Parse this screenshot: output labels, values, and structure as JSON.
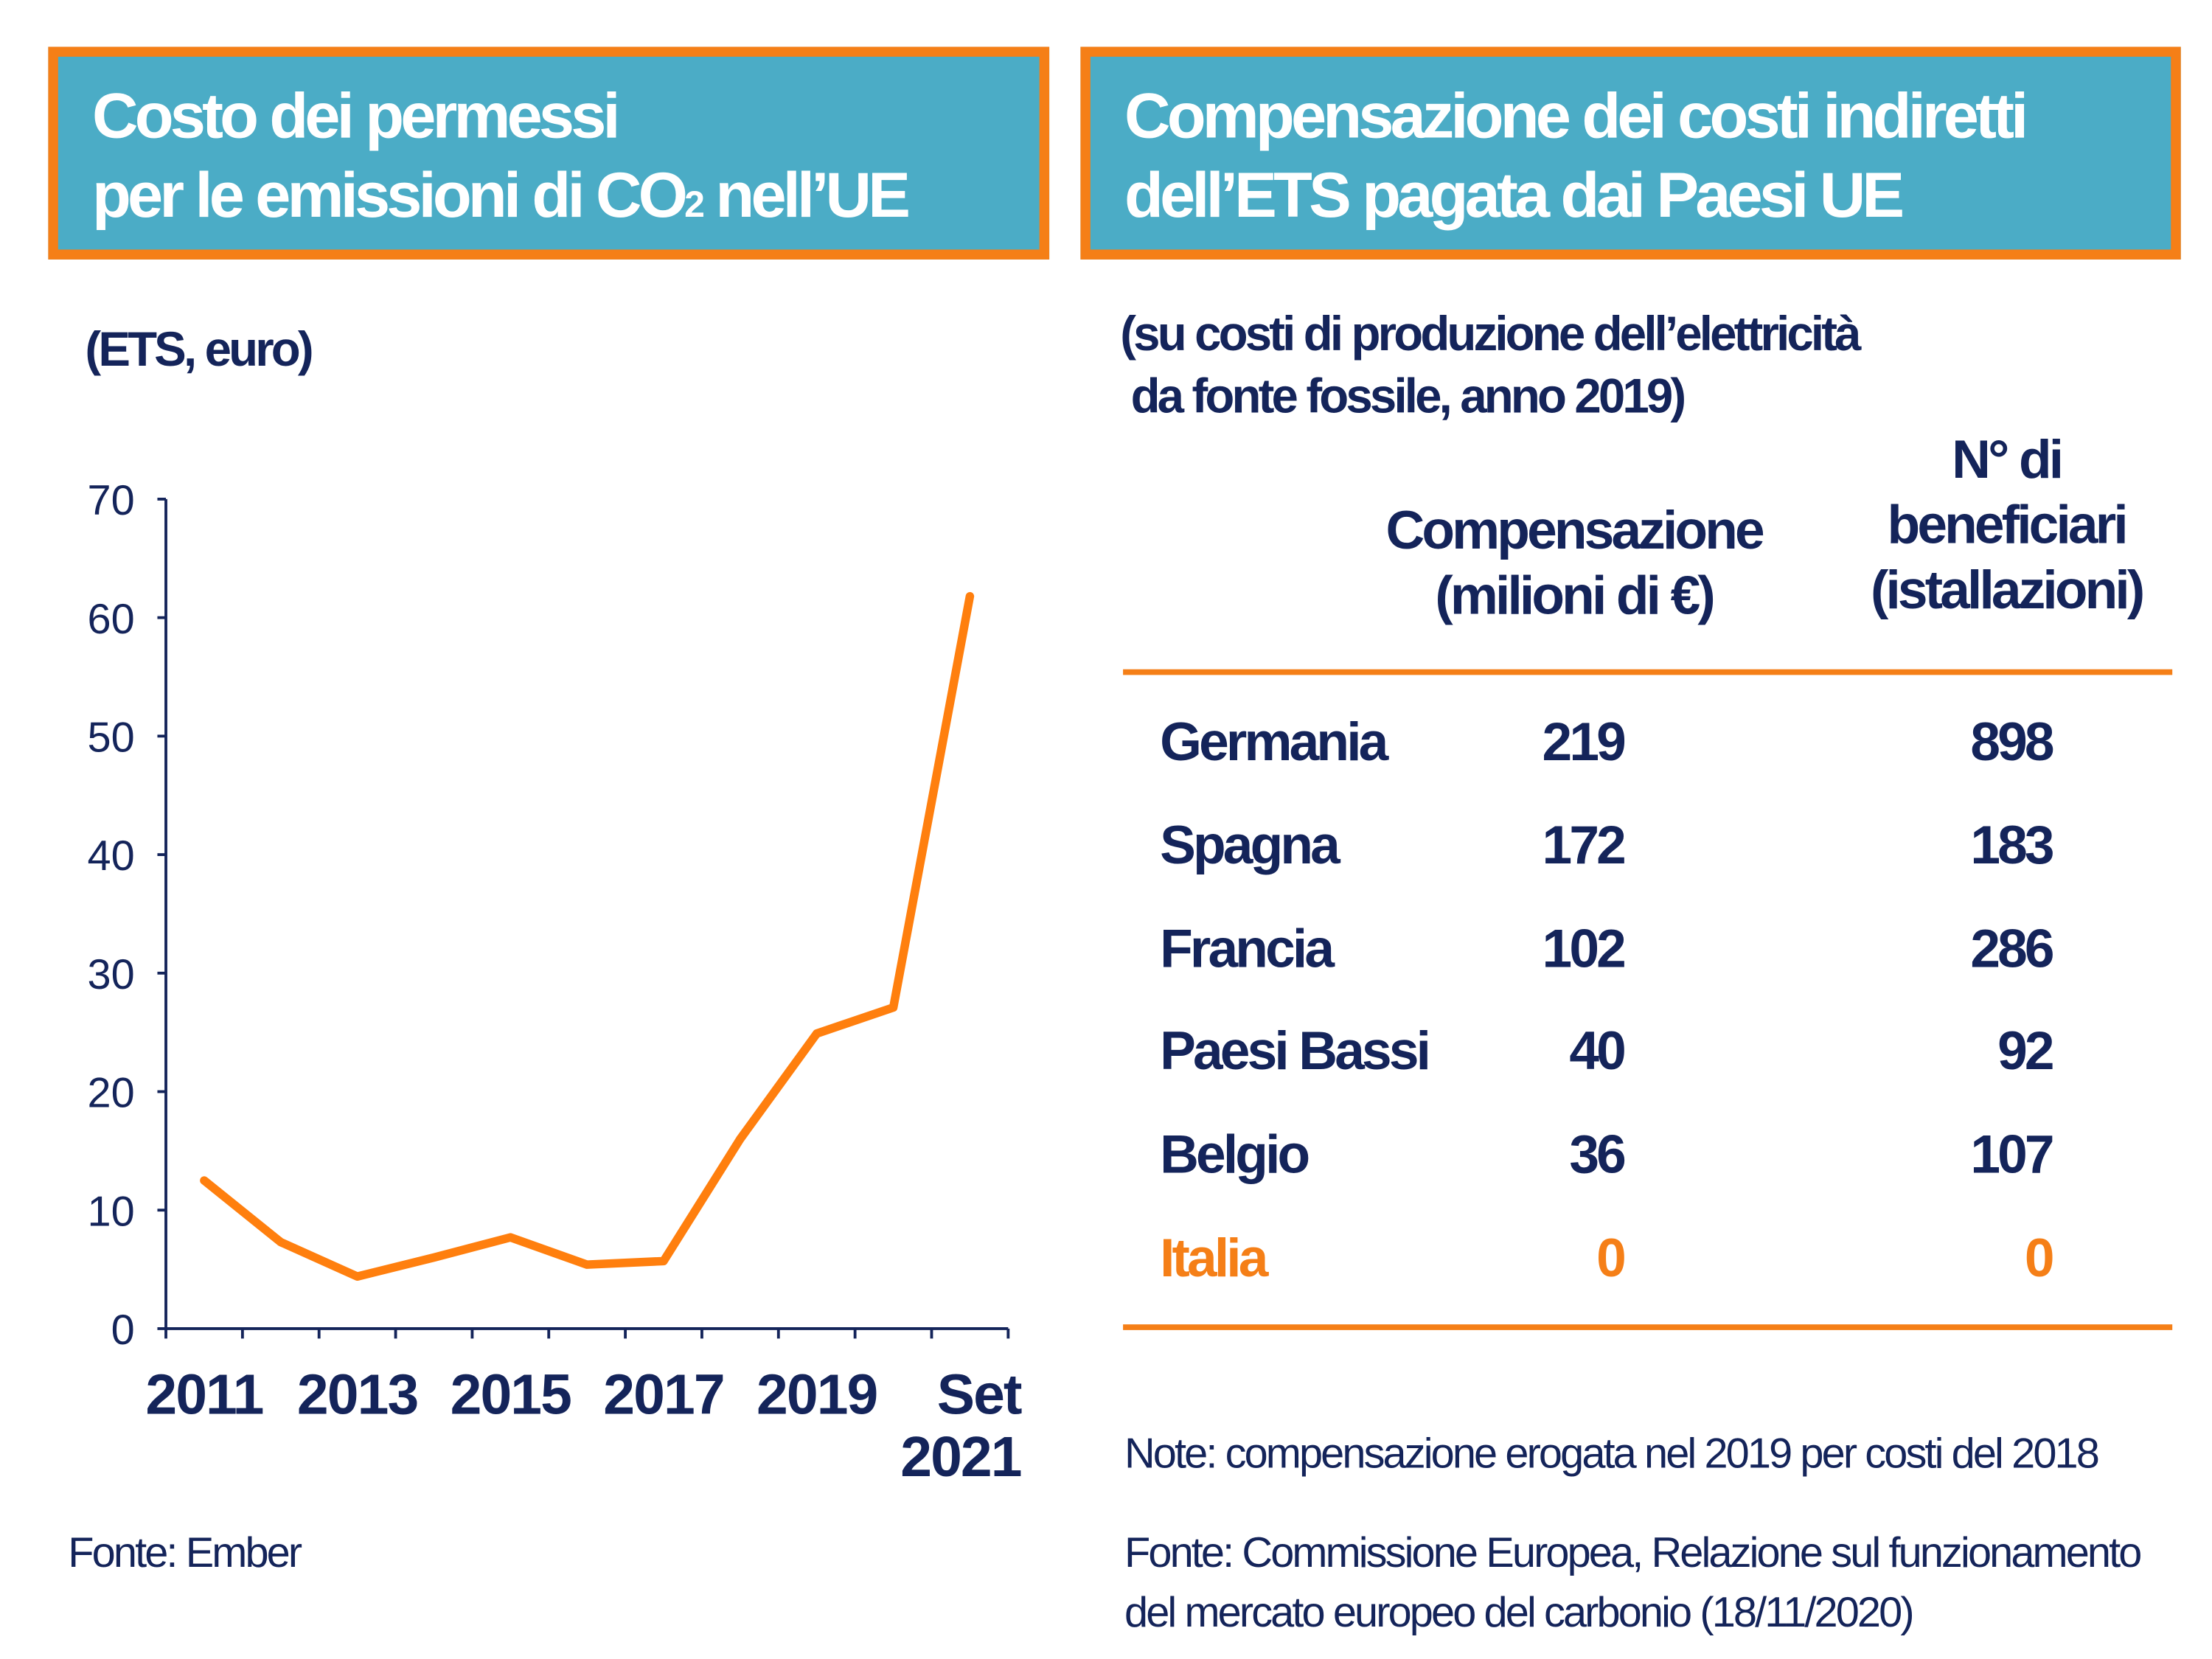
{
  "left_panel": {
    "title_line1": "Costo dei permessi",
    "title_line2": "per le emissioni di CO",
    "title_sub2": "2",
    "title_line2_end": " nell’UE",
    "unit_label": "(ETS, euro)",
    "source": "Fonte: Ember"
  },
  "right_panel": {
    "title_line1": "Compensazione dei costi indiretti",
    "title_line2": "dell’ETS pagata dai Paesi UE",
    "subtitle_line1": "(su costi di produzione dell’elettricità",
    "subtitle_line2": " da fonte fossile, anno 2019)",
    "table": {
      "headers": {
        "compensation": [
          "Compensazione",
          "(milioni di €)"
        ],
        "beneficiaries": [
          "N° di",
          "beneficiari",
          "(istallazioni)"
        ]
      },
      "rows": [
        {
          "country": "Germania",
          "compensation": "219",
          "beneficiaries": "898",
          "highlight": false
        },
        {
          "country": "Spagna",
          "compensation": "172",
          "beneficiaries": "183",
          "highlight": false
        },
        {
          "country": "Francia",
          "compensation": "102",
          "beneficiaries": "286",
          "highlight": false
        },
        {
          "country": "Paesi Bassi",
          "compensation": "40",
          "beneficiaries": "92",
          "highlight": false
        },
        {
          "country": "Belgio",
          "compensation": "36",
          "beneficiaries": "107",
          "highlight": false
        },
        {
          "country": "Italia",
          "compensation": "0",
          "beneficiaries": "0",
          "highlight": true
        }
      ]
    },
    "note": "Note: compensazione erogata nel 2019 per costi del 2018",
    "source_line1": "Fonte: Commissione Europea, Relazione sul funzionamento",
    "source_line2": "del mercato europeo del carbonio (18/11/2020)"
  },
  "colors": {
    "accent": "#f57f17",
    "title_bg": "#4bacc6",
    "text": "#14245a",
    "line": "#ff7f0e"
  },
  "chart_data": {
    "type": "line",
    "x": [
      "2011",
      "2012",
      "2013",
      "2014",
      "2015",
      "2016",
      "2017",
      "2018",
      "2019",
      "2020",
      "Set 2021"
    ],
    "values": [
      12.5,
      7.3,
      4.4,
      6.0,
      7.7,
      5.4,
      5.7,
      16.0,
      24.9,
      27.1,
      61.8
    ],
    "xtick_labels": [
      [
        "2011"
      ],
      [
        "2013"
      ],
      [
        "2015"
      ],
      [
        "2017"
      ],
      [
        "2019"
      ],
      [
        "Set",
        "2021"
      ]
    ],
    "xtick_label_positions": [
      "2011",
      "2013",
      "2015",
      "2017",
      "2019",
      "Set 2021"
    ],
    "yticks": [
      "0",
      "10",
      "20",
      "30",
      "40",
      "50",
      "60",
      "70"
    ],
    "ylim": [
      0,
      70
    ],
    "ylabel": "(ETS, euro)",
    "grid": false,
    "legend": "none"
  }
}
